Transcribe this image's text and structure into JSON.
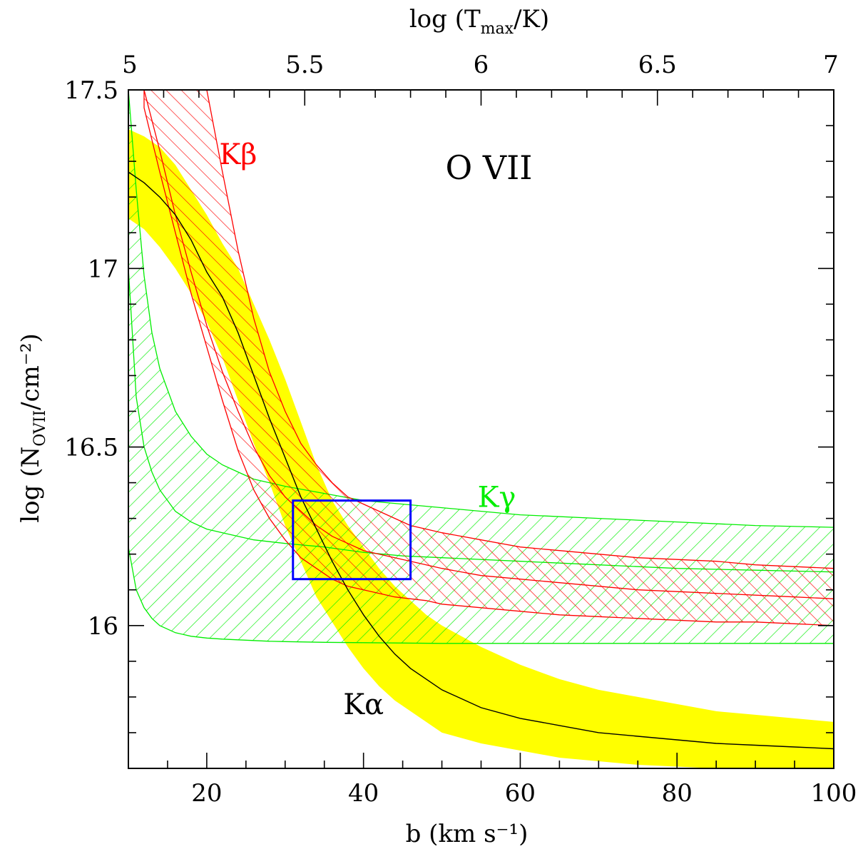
{
  "chart_data": {
    "type": "area",
    "title": "O VII",
    "xlabel": "b (km s⁻¹)",
    "ylabel": "log (N_OVII/cm⁻²)",
    "ylabel_prefix": "log",
    "ylabel_symbol": "N",
    "ylabel_subscript": "OVII",
    "ylabel_unit": "/cm⁻²)",
    "top_label": "log (T_max/K)",
    "top_label_prefix": "log",
    "top_label_symbol": "T",
    "top_label_subscript": "max",
    "top_label_unit": "/K)",
    "xlim": [
      10,
      100
    ],
    "ylim": [
      15.6,
      17.5
    ],
    "xticks": [
      20,
      40,
      60,
      80,
      100
    ],
    "xtick_labels": [
      "20",
      "40",
      "60",
      "80",
      "100"
    ],
    "yticks": [
      16,
      16.5,
      17,
      17.5
    ],
    "ytick_labels": [
      "16",
      "16.5",
      "17",
      "17.5"
    ],
    "top_ticks": [
      5,
      5.5,
      6,
      6.5,
      7
    ],
    "top_tick_labels": [
      "5",
      "5.5",
      "6",
      "6.5",
      "7"
    ],
    "series": [
      {
        "name": "Kα",
        "color": "#ffff00",
        "style": "filled band with central line",
        "x": [
          10,
          12,
          14,
          16,
          18,
          20,
          22,
          24,
          26,
          28,
          30,
          32,
          34,
          36,
          38,
          40,
          42,
          44,
          46,
          48,
          50,
          55,
          60,
          65,
          70,
          75,
          80,
          85,
          90,
          95,
          100
        ],
        "center": [
          17.27,
          17.24,
          17.2,
          17.15,
          17.08,
          16.99,
          16.92,
          16.82,
          16.7,
          16.58,
          16.47,
          16.36,
          16.27,
          16.18,
          16.1,
          16.03,
          15.97,
          15.92,
          15.88,
          15.85,
          15.82,
          15.77,
          15.74,
          15.72,
          15.7,
          15.69,
          15.68,
          15.67,
          15.665,
          15.66,
          15.655
        ],
        "upper": [
          17.39,
          17.37,
          17.34,
          17.29,
          17.22,
          17.15,
          17.07,
          17.0,
          16.9,
          16.8,
          16.69,
          16.57,
          16.45,
          16.35,
          16.28,
          16.22,
          16.16,
          16.11,
          16.07,
          16.03,
          16.0,
          15.94,
          15.89,
          15.85,
          15.82,
          15.8,
          15.78,
          15.76,
          15.75,
          15.74,
          15.73
        ],
        "lower": [
          17.14,
          17.11,
          17.06,
          17.0,
          16.93,
          16.85,
          16.75,
          16.63,
          16.51,
          16.4,
          16.28,
          16.18,
          16.08,
          16.01,
          15.94,
          15.88,
          15.83,
          15.79,
          15.76,
          15.73,
          15.7,
          15.67,
          15.65,
          15.63,
          15.62,
          15.61,
          15.605,
          15.6,
          15.6,
          15.6,
          15.6
        ]
      },
      {
        "name": "Kβ",
        "color": "#ff0000",
        "style": "hatched band with central line",
        "x": [
          12,
          14,
          16,
          18,
          20,
          22,
          24,
          26,
          28,
          30,
          32,
          34,
          36,
          38,
          40,
          42,
          44,
          46,
          48,
          50,
          55,
          60,
          65,
          70,
          75,
          80,
          85,
          90,
          95,
          100
        ],
        "center": [
          17.5,
          17.33,
          17.15,
          16.99,
          16.84,
          16.71,
          16.6,
          16.5,
          16.42,
          16.36,
          16.32,
          16.28,
          16.25,
          16.23,
          16.21,
          16.2,
          16.19,
          16.18,
          16.17,
          16.16,
          16.14,
          16.13,
          16.12,
          16.11,
          16.1,
          16.095,
          16.09,
          16.085,
          16.08,
          16.075
        ],
        "upper": [
          17.5,
          17.5,
          17.5,
          17.5,
          17.5,
          17.27,
          17.05,
          16.86,
          16.71,
          16.6,
          16.51,
          16.45,
          16.4,
          16.36,
          16.34,
          16.32,
          16.3,
          16.28,
          16.27,
          16.26,
          16.24,
          16.22,
          16.21,
          16.2,
          16.19,
          16.185,
          16.18,
          16.17,
          16.165,
          16.16
        ],
        "lower": [
          17.45,
          17.27,
          17.1,
          16.93,
          16.78,
          16.63,
          16.49,
          16.38,
          16.3,
          16.24,
          16.19,
          16.16,
          16.13,
          16.11,
          16.1,
          16.09,
          16.08,
          16.075,
          16.07,
          16.06,
          16.05,
          16.04,
          16.03,
          16.025,
          16.02,
          16.015,
          16.01,
          16.01,
          16.005,
          16.0
        ]
      },
      {
        "name": "Kγ",
        "color": "#00ff00",
        "style": "hatched band with central line",
        "x": [
          10,
          11,
          12,
          13,
          14,
          16,
          18,
          20,
          22,
          24,
          26,
          28,
          30,
          35,
          40,
          45,
          50,
          60,
          70,
          80,
          90,
          100
        ],
        "center": [
          17.0,
          16.64,
          16.5,
          16.43,
          16.38,
          16.32,
          16.29,
          16.27,
          16.26,
          16.25,
          16.24,
          16.235,
          16.23,
          16.22,
          16.205,
          16.195,
          16.19,
          16.18,
          16.17,
          16.16,
          16.155,
          16.15
        ],
        "upper": [
          17.5,
          17.22,
          16.98,
          16.82,
          16.72,
          16.6,
          16.53,
          16.48,
          16.45,
          16.43,
          16.41,
          16.4,
          16.39,
          16.37,
          16.35,
          16.34,
          16.33,
          16.31,
          16.3,
          16.29,
          16.28,
          16.275
        ],
        "lower": [
          16.22,
          16.1,
          16.05,
          16.02,
          16.0,
          15.98,
          15.97,
          15.965,
          15.962,
          15.96,
          15.958,
          15.956,
          15.955,
          15.953,
          15.952,
          15.951,
          15.95,
          15.95,
          15.95,
          15.95,
          15.95,
          15.95
        ]
      }
    ],
    "box": {
      "x_range": [
        31,
        46
      ],
      "y_range": [
        16.13,
        16.35
      ],
      "color": "#0000ff"
    },
    "annotations": [
      {
        "text": "O VII",
        "x": 56,
        "y": 17.29
      },
      {
        "text": "Kβ",
        "x": 24,
        "y": 17.32
      },
      {
        "text": "Kγ",
        "x": 57,
        "y": 16.36
      },
      {
        "text": "Kα",
        "x": 40,
        "y": 15.78
      }
    ],
    "grid": false,
    "legend": "none"
  }
}
